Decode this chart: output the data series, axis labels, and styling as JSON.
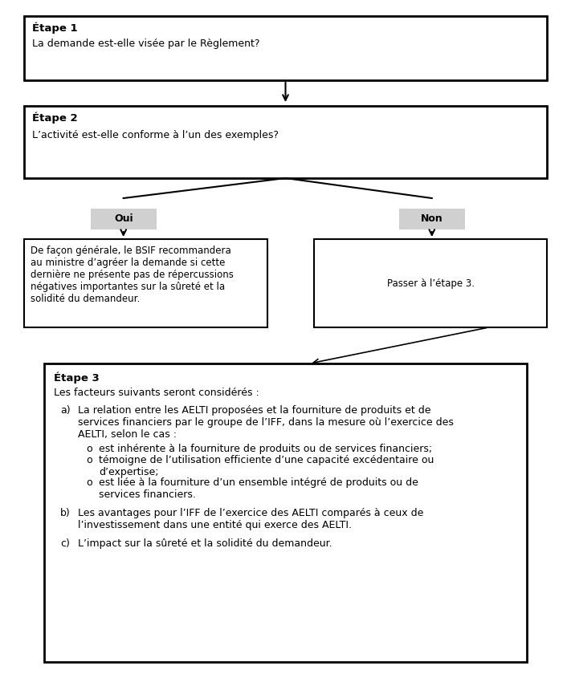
{
  "bg_color": "#ffffff",
  "etape1_label": "Étape 1",
  "etape1_text": "La demande est-elle visée par le Règlement?",
  "etape2_label": "Étape 2",
  "etape2_text": "L’activité est-elle conforme à l’un des exemples?",
  "oui_label": "Oui",
  "non_label": "Non",
  "left_box_text": "De façon générale, le BSIF recommandera\nau ministre d’agréer la demande si cette\ndernière ne présente pas de répercussions\nnégatives importantes sur la sûreté et la\nsolidité du demandeur.",
  "right_box_text": "Passer à l’étape 3.",
  "etape3_label": "Étape 3",
  "etape3_intro": "Les facteurs suivants seront considérés :",
  "item_a_label": "a)",
  "item_a_text": "La relation entre les AELTI proposées et la fourniture de produits et de\nservices financiers par le groupe de l’IFF, dans la mesure où l’exercice des\nAELTI, selon le cas :",
  "sub_bullet": "o",
  "sub_items": [
    "est inhérente à la fourniture de produits ou de services financiers;",
    "témoigne de l’utilisation efficiente d’une capacité excédentaire ou\nd’expertise;",
    "est liée à la fourniture d’un ensemble intégré de produits ou de\nservices financiers."
  ],
  "item_b_label": "b)",
  "item_b_text": "Les avantages pour l’IFF de l’exercice des AELTI comparés à ceux de\nl’investissement dans une entité qui exerce des AELTI.",
  "item_c_label": "c)",
  "item_c_text": "L’impact sur la sûreté et la solidité du demandeur."
}
